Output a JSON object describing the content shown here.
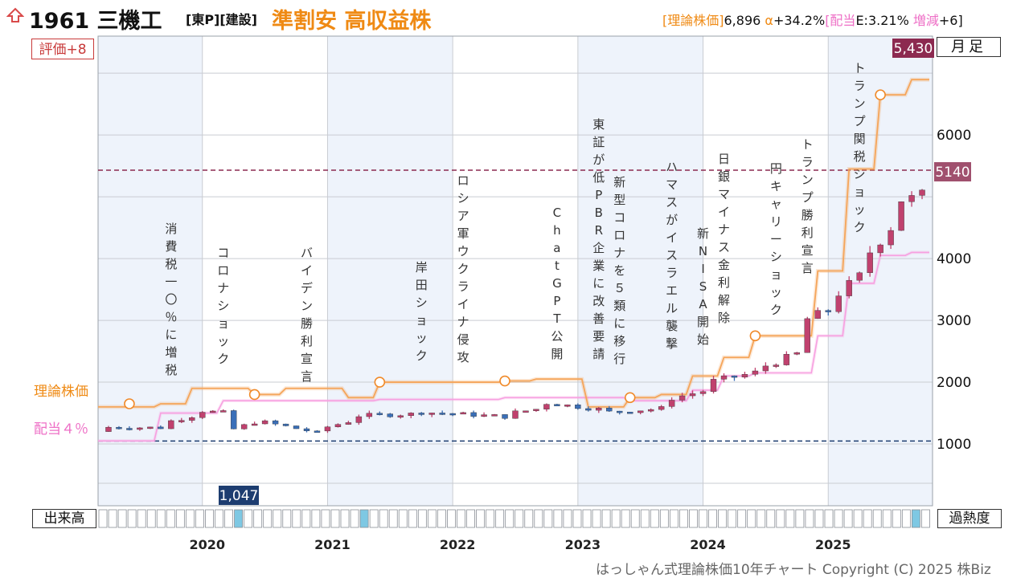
{
  "header": {
    "code_name": "1961 三機工",
    "market": "[東P][建設]",
    "tagline": "準割安 高収益株",
    "theory_label": "[理論株価]",
    "theory_value": "6,896",
    "alpha_label": "α",
    "alpha_value": "+34.2%",
    "dividend_label": "[配当",
    "dividend_value": "E:3.21%",
    "change_label": "増減",
    "change_value": "+6]",
    "icon": "up-arrow-icon"
  },
  "rating": "評価+8",
  "period": "月足",
  "volume_label": "出来高",
  "heat_label": "過熱度",
  "legend": {
    "theory": "理論株価",
    "dividend": "配当４％"
  },
  "copyright": "はっしゃん式理論株価10年チャート Copyright (C) 2025 株Biz",
  "colors": {
    "theory_line": "#f5a55a",
    "dividend_line": "#f7a0e0",
    "up_candle": "#c0416e",
    "down_candle": "#3a6fb8",
    "shade": "#eef3fb",
    "dashed_high": "#8c2a50",
    "dashed_low": "#1d3d70",
    "badge_high": "#8c2a50",
    "badge_low": "#1d3d70",
    "badge_last": "#a0506e",
    "heat_cell": "#7ec8e3"
  },
  "chart_data": {
    "type": "candlestick",
    "x_range": [
      "2019-03",
      "2025-10"
    ],
    "y_range": [
      0,
      7600
    ],
    "y_ticks": [
      1000,
      2000,
      3000,
      4000,
      6000
    ],
    "year_labels": [
      "2020",
      "2021",
      "2022",
      "2023",
      "2024",
      "2025"
    ],
    "high_marker": {
      "label": "5,430",
      "value": 5430
    },
    "low_marker": {
      "label": "1,047",
      "value": 1047
    },
    "last_price": {
      "label": "5140",
      "value": 5140
    },
    "candles_summary": [
      [
        "2019-03",
        1200,
        1270
      ],
      [
        "2019-09",
        1260,
        1330
      ],
      [
        "2019-12",
        1450,
        1550
      ],
      [
        "2020-03",
        1500,
        1180
      ],
      [
        "2020-06",
        1350,
        1380
      ],
      [
        "2020-12",
        1180,
        1230
      ],
      [
        "2021-03",
        1360,
        1450
      ],
      [
        "2021-09",
        1480,
        1520
      ],
      [
        "2022-06",
        1440,
        1480
      ],
      [
        "2022-09",
        1560,
        1680
      ],
      [
        "2023-03",
        1560,
        1500
      ],
      [
        "2023-09",
        1570,
        1700
      ],
      [
        "2024-01",
        1850,
        1980
      ],
      [
        "2024-06",
        2150,
        2200
      ],
      [
        "2024-10",
        2450,
        2950
      ],
      [
        "2025-01",
        3150,
        3300
      ],
      [
        "2025-04",
        3700,
        3900
      ],
      [
        "2025-07",
        4500,
        4950
      ],
      [
        "2025-09",
        4950,
        5140
      ]
    ],
    "theory_line": [
      [
        "2019-03",
        1600
      ],
      [
        "2019-09",
        1650
      ],
      [
        "2019-12",
        1900
      ],
      [
        "2020-06",
        1800
      ],
      [
        "2020-09",
        1900
      ],
      [
        "2021-03",
        1750
      ],
      [
        "2021-06",
        2000
      ],
      [
        "2022-06",
        2020
      ],
      [
        "2022-09",
        2050
      ],
      [
        "2023-02",
        1600
      ],
      [
        "2023-06",
        1750
      ],
      [
        "2023-09",
        1800
      ],
      [
        "2023-12",
        2100
      ],
      [
        "2024-03",
        2400
      ],
      [
        "2024-06",
        2750
      ],
      [
        "2024-09",
        2750
      ],
      [
        "2024-12",
        3800
      ],
      [
        "2025-03",
        5450
      ],
      [
        "2025-06",
        6650
      ],
      [
        "2025-09",
        6896
      ]
    ],
    "dividend_line": [
      [
        "2019-03",
        1050
      ],
      [
        "2019-06",
        1050
      ],
      [
        "2019-09",
        1500
      ],
      [
        "2020-03",
        1700
      ],
      [
        "2021-06",
        1720
      ],
      [
        "2022-06",
        1750
      ],
      [
        "2023-02",
        1750
      ],
      [
        "2023-06",
        1700
      ],
      [
        "2023-12",
        1870
      ],
      [
        "2024-03",
        2100
      ],
      [
        "2024-06",
        2150
      ],
      [
        "2024-12",
        2750
      ],
      [
        "2025-03",
        3600
      ],
      [
        "2025-06",
        4050
      ],
      [
        "2025-09",
        4100
      ]
    ],
    "theory_markers": [
      [
        "2019-06",
        1650
      ],
      [
        "2020-06",
        1800
      ],
      [
        "2021-06",
        2000
      ],
      [
        "2022-06",
        2020
      ],
      [
        "2023-06",
        1750
      ],
      [
        "2024-06",
        2750
      ],
      [
        "2025-06",
        6650
      ]
    ],
    "events": [
      {
        "label": "消費税一〇％に増税",
        "date": "2019-10"
      },
      {
        "label": "コロナショック",
        "date": "2020-03"
      },
      {
        "label": "バイデン勝利宣言",
        "date": "2020-11"
      },
      {
        "label": "岸田ショック",
        "date": "2021-10"
      },
      {
        "label": "ロシア軍ウクライナ侵攻",
        "date": "2022-02"
      },
      {
        "label": "ChatGPT公開",
        "date": "2022-11"
      },
      {
        "label": "東証が低PBR企業に改善要請",
        "date": "2023-03"
      },
      {
        "label": "新型コロナを５類に移行",
        "date": "2023-05"
      },
      {
        "label": "ハマスがイスラエル襲撃",
        "date": "2023-10"
      },
      {
        "label": "新NISA開始",
        "date": "2024-01"
      },
      {
        "label": "日銀マイナス金利解除",
        "date": "2024-03"
      },
      {
        "label": "円キャリーショック",
        "date": "2024-08"
      },
      {
        "label": "トランプ勝利宣言",
        "date": "2024-11"
      },
      {
        "label": "トランプ関税ショック",
        "date": "2025-04"
      }
    ]
  }
}
